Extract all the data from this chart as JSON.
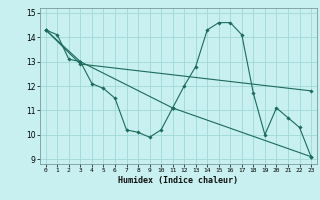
{
  "title": "",
  "xlabel": "Humidex (Indice chaleur)",
  "bg_color": "#c8f0f0",
  "grid_color": "#a0d8d8",
  "line_color": "#1a6b5a",
  "xlim": [
    -0.5,
    23.5
  ],
  "ylim": [
    8.8,
    15.2
  ],
  "xticks": [
    0,
    1,
    2,
    3,
    4,
    5,
    6,
    7,
    8,
    9,
    10,
    11,
    12,
    13,
    14,
    15,
    16,
    17,
    18,
    19,
    20,
    21,
    22,
    23
  ],
  "yticks": [
    9,
    10,
    11,
    12,
    13,
    14,
    15
  ],
  "series": [
    {
      "x": [
        0,
        1,
        2,
        3
      ],
      "y": [
        14.3,
        14.1,
        13.1,
        13.0
      ]
    },
    {
      "x": [
        3,
        4,
        5,
        6,
        7,
        8,
        9,
        10,
        11
      ],
      "y": [
        13.0,
        12.1,
        11.9,
        11.5,
        10.2,
        10.1,
        9.9,
        10.2,
        11.1
      ]
    },
    {
      "x": [
        11,
        12,
        13,
        14,
        15,
        16,
        17,
        18,
        19,
        20,
        21,
        22,
        23
      ],
      "y": [
        11.1,
        12.0,
        12.8,
        14.3,
        14.6,
        14.6,
        14.1,
        11.7,
        10.0,
        11.1,
        10.7,
        10.3,
        9.1
      ]
    },
    {
      "x": [
        0,
        3,
        11,
        23
      ],
      "y": [
        14.3,
        13.0,
        11.1,
        9.1
      ]
    },
    {
      "x": [
        0,
        3,
        23
      ],
      "y": [
        14.3,
        12.9,
        11.8
      ]
    }
  ]
}
